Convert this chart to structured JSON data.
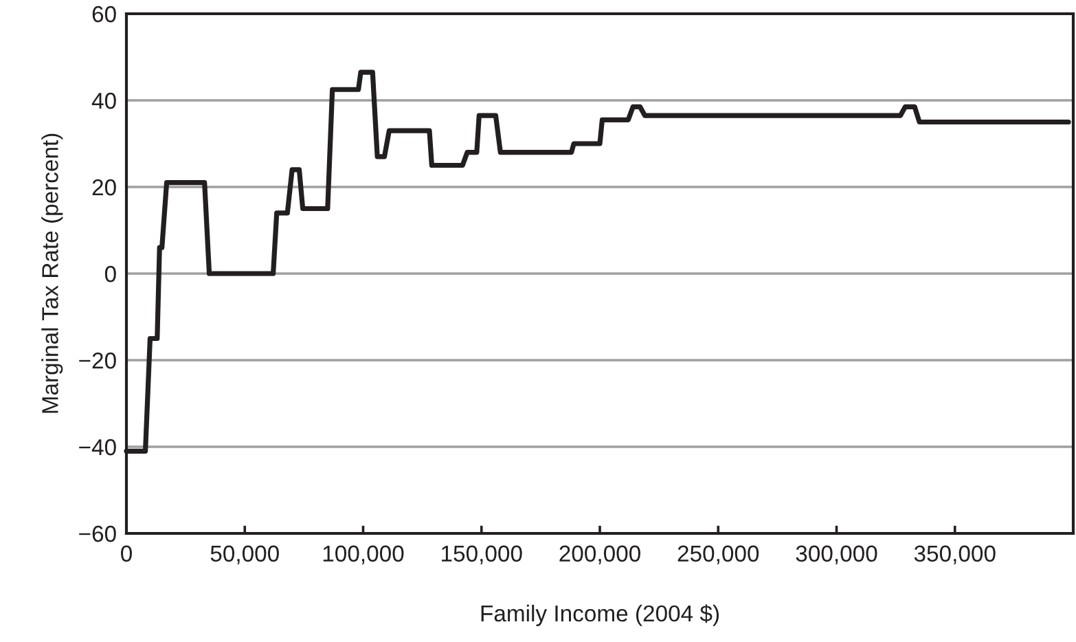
{
  "chart_data": {
    "type": "line",
    "xlabel": "Family Income (2004 $)",
    "ylabel": "Marginal Tax Rate (percent)",
    "xlim": [
      0,
      400000
    ],
    "xticks": [
      {
        "value": 0,
        "label": "0"
      },
      {
        "value": 50000,
        "label": "50,000"
      },
      {
        "value": 100000,
        "label": "100,000"
      },
      {
        "value": 150000,
        "label": "150,000"
      },
      {
        "value": 200000,
        "label": "200,000"
      },
      {
        "value": 250000,
        "label": "250,000"
      },
      {
        "value": 300000,
        "label": "300,000"
      },
      {
        "value": 350000,
        "label": "350,000"
      }
    ],
    "ylim": [
      -60,
      60
    ],
    "yticks": [
      {
        "value": -60,
        "label": "−60"
      },
      {
        "value": -40,
        "label": "−40"
      },
      {
        "value": -20,
        "label": "−20"
      },
      0,
      20,
      40,
      60
    ],
    "grid": "y",
    "line_style": "solid",
    "marker": "none",
    "series": [
      {
        "color": "#231f20",
        "x": [
          0,
          8000,
          10000,
          13000,
          14000,
          15000,
          17000,
          33000,
          35000,
          62000,
          63500,
          68000,
          70000,
          73000,
          74500,
          85000,
          87000,
          98000,
          99000,
          104000,
          106000,
          109000,
          111000,
          128000,
          129000,
          142000,
          144000,
          148000,
          149000,
          156000,
          158000,
          188000,
          189000,
          200000,
          201000,
          212000,
          214000,
          217000,
          219000,
          327000,
          329000,
          333000,
          335000,
          398000
        ],
        "values": [
          -41,
          -41,
          -15,
          -15,
          6,
          6,
          21,
          21,
          0,
          0,
          14,
          14,
          24,
          24,
          15,
          15,
          42.5,
          42.5,
          46.5,
          46.5,
          27,
          27,
          33,
          33,
          25,
          25,
          28,
          28,
          36.5,
          36.5,
          28,
          28,
          30,
          30,
          35.5,
          35.5,
          38.5,
          38.5,
          36.5,
          36.5,
          38.5,
          38.5,
          35,
          35
        ]
      }
    ]
  }
}
